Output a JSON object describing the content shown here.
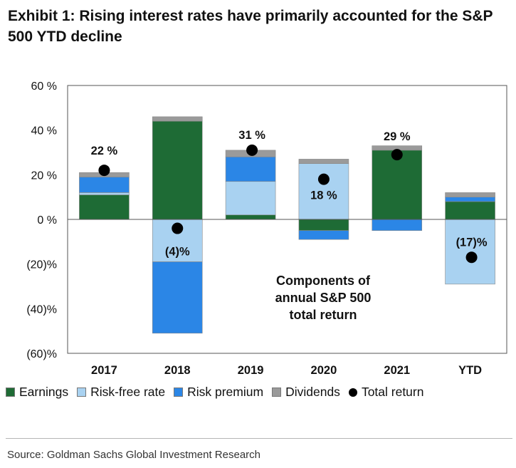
{
  "title": "Exhibit 1: Rising interest rates have primarily accounted for the S&P 500 YTD decline",
  "chart_data": {
    "type": "bar",
    "stacked": true,
    "categories": [
      "2017",
      "2018",
      "2019",
      "2020",
      "2021",
      "YTD"
    ],
    "ylim": [
      -60,
      60
    ],
    "yticks": [
      60,
      40,
      20,
      0,
      -20,
      -40,
      -60
    ],
    "ytick_labels": [
      "60 %",
      "40 %",
      "20 %",
      "0 %",
      "(20)%",
      "(40)%",
      "(60)%"
    ],
    "series": [
      {
        "name": "Earnings",
        "color": "#1e6b35",
        "values": [
          11,
          44,
          2,
          -5,
          31,
          8
        ]
      },
      {
        "name": "Risk-free rate",
        "color": "#a9d2f1",
        "values": [
          1,
          -19,
          15,
          25,
          0,
          -29
        ]
      },
      {
        "name": "Risk premium",
        "color": "#2b86e6",
        "values": [
          7,
          -32,
          11,
          -4,
          -5,
          2
        ]
      },
      {
        "name": "Dividends",
        "color": "#9a9a9a",
        "values": [
          2,
          2,
          3,
          2,
          2,
          2
        ]
      }
    ],
    "total_return": {
      "name": "Total return",
      "values": [
        22,
        -4,
        31,
        18,
        29,
        -17
      ],
      "labels": [
        "22 %",
        "(4)%",
        "31 %",
        "18 %",
        "29 %",
        "(17)%"
      ]
    },
    "annotation": [
      "Components of",
      "annual S&P 500",
      "total return"
    ]
  },
  "legend": {
    "earnings": "Earnings",
    "risk_free": "Risk-free rate",
    "risk_premium": "Risk premium",
    "dividends": "Dividends",
    "total_return": "Total return"
  },
  "colors": {
    "earnings": "#1e6b35",
    "risk_free": "#a9d2f1",
    "risk_premium": "#2b86e6",
    "dividends": "#9a9a9a",
    "total_return": "#000000"
  },
  "source": "Source: Goldman Sachs Global Investment Research"
}
